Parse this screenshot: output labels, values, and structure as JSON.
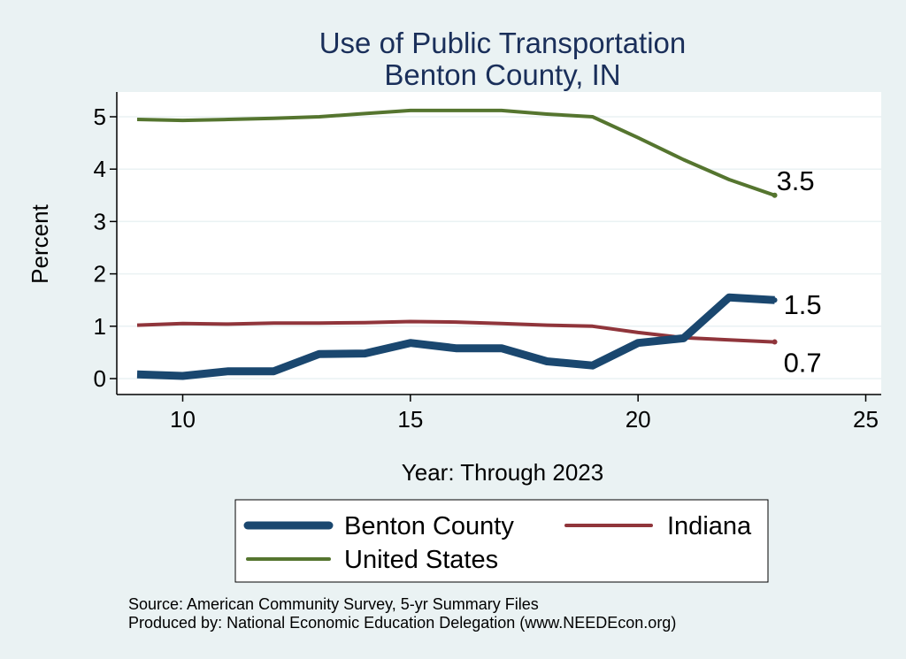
{
  "chart_data": {
    "type": "line",
    "title": "Use of Public Transportation",
    "subtitle": "Benton County, IN",
    "xlabel": "Year: Through 2023",
    "ylabel": "Percent",
    "xlim": [
      9,
      25
    ],
    "ylim": [
      0,
      5
    ],
    "xticks": [
      10,
      15,
      20,
      25
    ],
    "yticks": [
      0,
      1,
      2,
      3,
      4,
      5
    ],
    "grid": true,
    "legend_position": "bottom",
    "x": [
      9,
      10,
      11,
      12,
      13,
      14,
      15,
      16,
      17,
      18,
      19,
      20,
      21,
      22,
      23
    ],
    "series": [
      {
        "name": "Benton County",
        "color": "#1a476f",
        "values": [
          0.08,
          0.05,
          0.14,
          0.14,
          0.47,
          0.48,
          0.68,
          0.58,
          0.58,
          0.33,
          0.25,
          0.68,
          0.77,
          1.55,
          1.5
        ],
        "end_label": "1.5"
      },
      {
        "name": "Indiana",
        "color": "#90353b",
        "values": [
          1.02,
          1.05,
          1.04,
          1.06,
          1.06,
          1.07,
          1.09,
          1.08,
          1.05,
          1.02,
          1.0,
          0.88,
          0.78,
          0.74,
          0.7
        ],
        "end_label": "0.7"
      },
      {
        "name": "United States",
        "color": "#55752f",
        "values": [
          4.95,
          4.93,
          4.95,
          4.97,
          5.0,
          5.06,
          5.12,
          5.12,
          5.12,
          5.05,
          5.0,
          4.6,
          4.18,
          3.8,
          3.5
        ],
        "end_label": "3.5"
      }
    ],
    "notes": [
      "Source: American Community Survey, 5-yr Summary Files",
      "Produced by: National Economic Education Delegation (www.NEEDEcon.org)"
    ]
  }
}
